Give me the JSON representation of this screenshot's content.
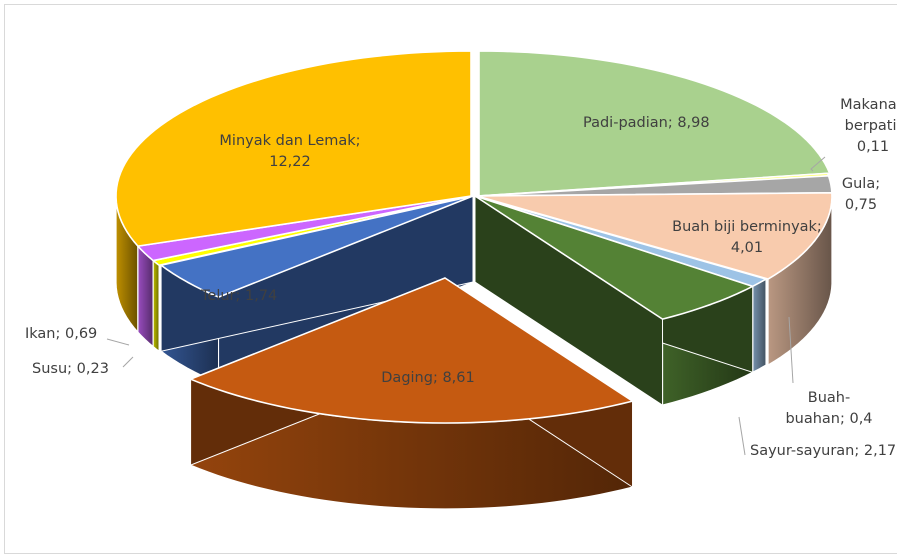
{
  "chart_data": {
    "type": "pie",
    "title": "",
    "style": "3d-exploded",
    "legend": "none",
    "slices": [
      {
        "name": "Padi-padian",
        "value": 8.98,
        "label_lines": [
          "Padi-padian; 8,98"
        ],
        "color": "#a9d18e"
      },
      {
        "name": "Makanan berpati",
        "value": 0.11,
        "label_lines": [
          "Makanan",
          "berpati;",
          "0,11"
        ],
        "color": "#ffff66"
      },
      {
        "name": "Gula",
        "value": 0.75,
        "label_lines": [
          "Gula;",
          "0,75"
        ],
        "color": "#a6a6a6"
      },
      {
        "name": "Buah biji berminyak",
        "value": 4.01,
        "label_lines": [
          "Buah biji berminyak;",
          "4,01"
        ],
        "color": "#f8cbad"
      },
      {
        "name": "Buah-buahan",
        "value": 0.4,
        "label_lines": [
          "Buah-",
          "buahan; 0,4"
        ],
        "color": "#9dc3e6"
      },
      {
        "name": "Sayur-sayuran",
        "value": 2.17,
        "label_lines": [
          "Sayur-sayuran; 2,17"
        ],
        "color": "#548235"
      },
      {
        "name": "Daging",
        "value": 8.61,
        "label_lines": [
          "Daging; 8,61"
        ],
        "color": "#c55a11"
      },
      {
        "name": "Telur",
        "value": 1.74,
        "label_lines": [
          "Telur; 1,74"
        ],
        "color": "#4472c4"
      },
      {
        "name": "Susu",
        "value": 0.23,
        "label_lines": [
          "Susu; 0,23"
        ],
        "color": "#ffff00"
      },
      {
        "name": "Ikan",
        "value": 0.69,
        "label_lines": [
          "Ikan; 0,69"
        ],
        "color": "#cc66ff"
      },
      {
        "name": "Minyak dan Lemak",
        "value": 12.22,
        "label_lines": [
          "Minyak dan Lemak;",
          "12,22"
        ],
        "color": "#ffc000"
      }
    ]
  }
}
